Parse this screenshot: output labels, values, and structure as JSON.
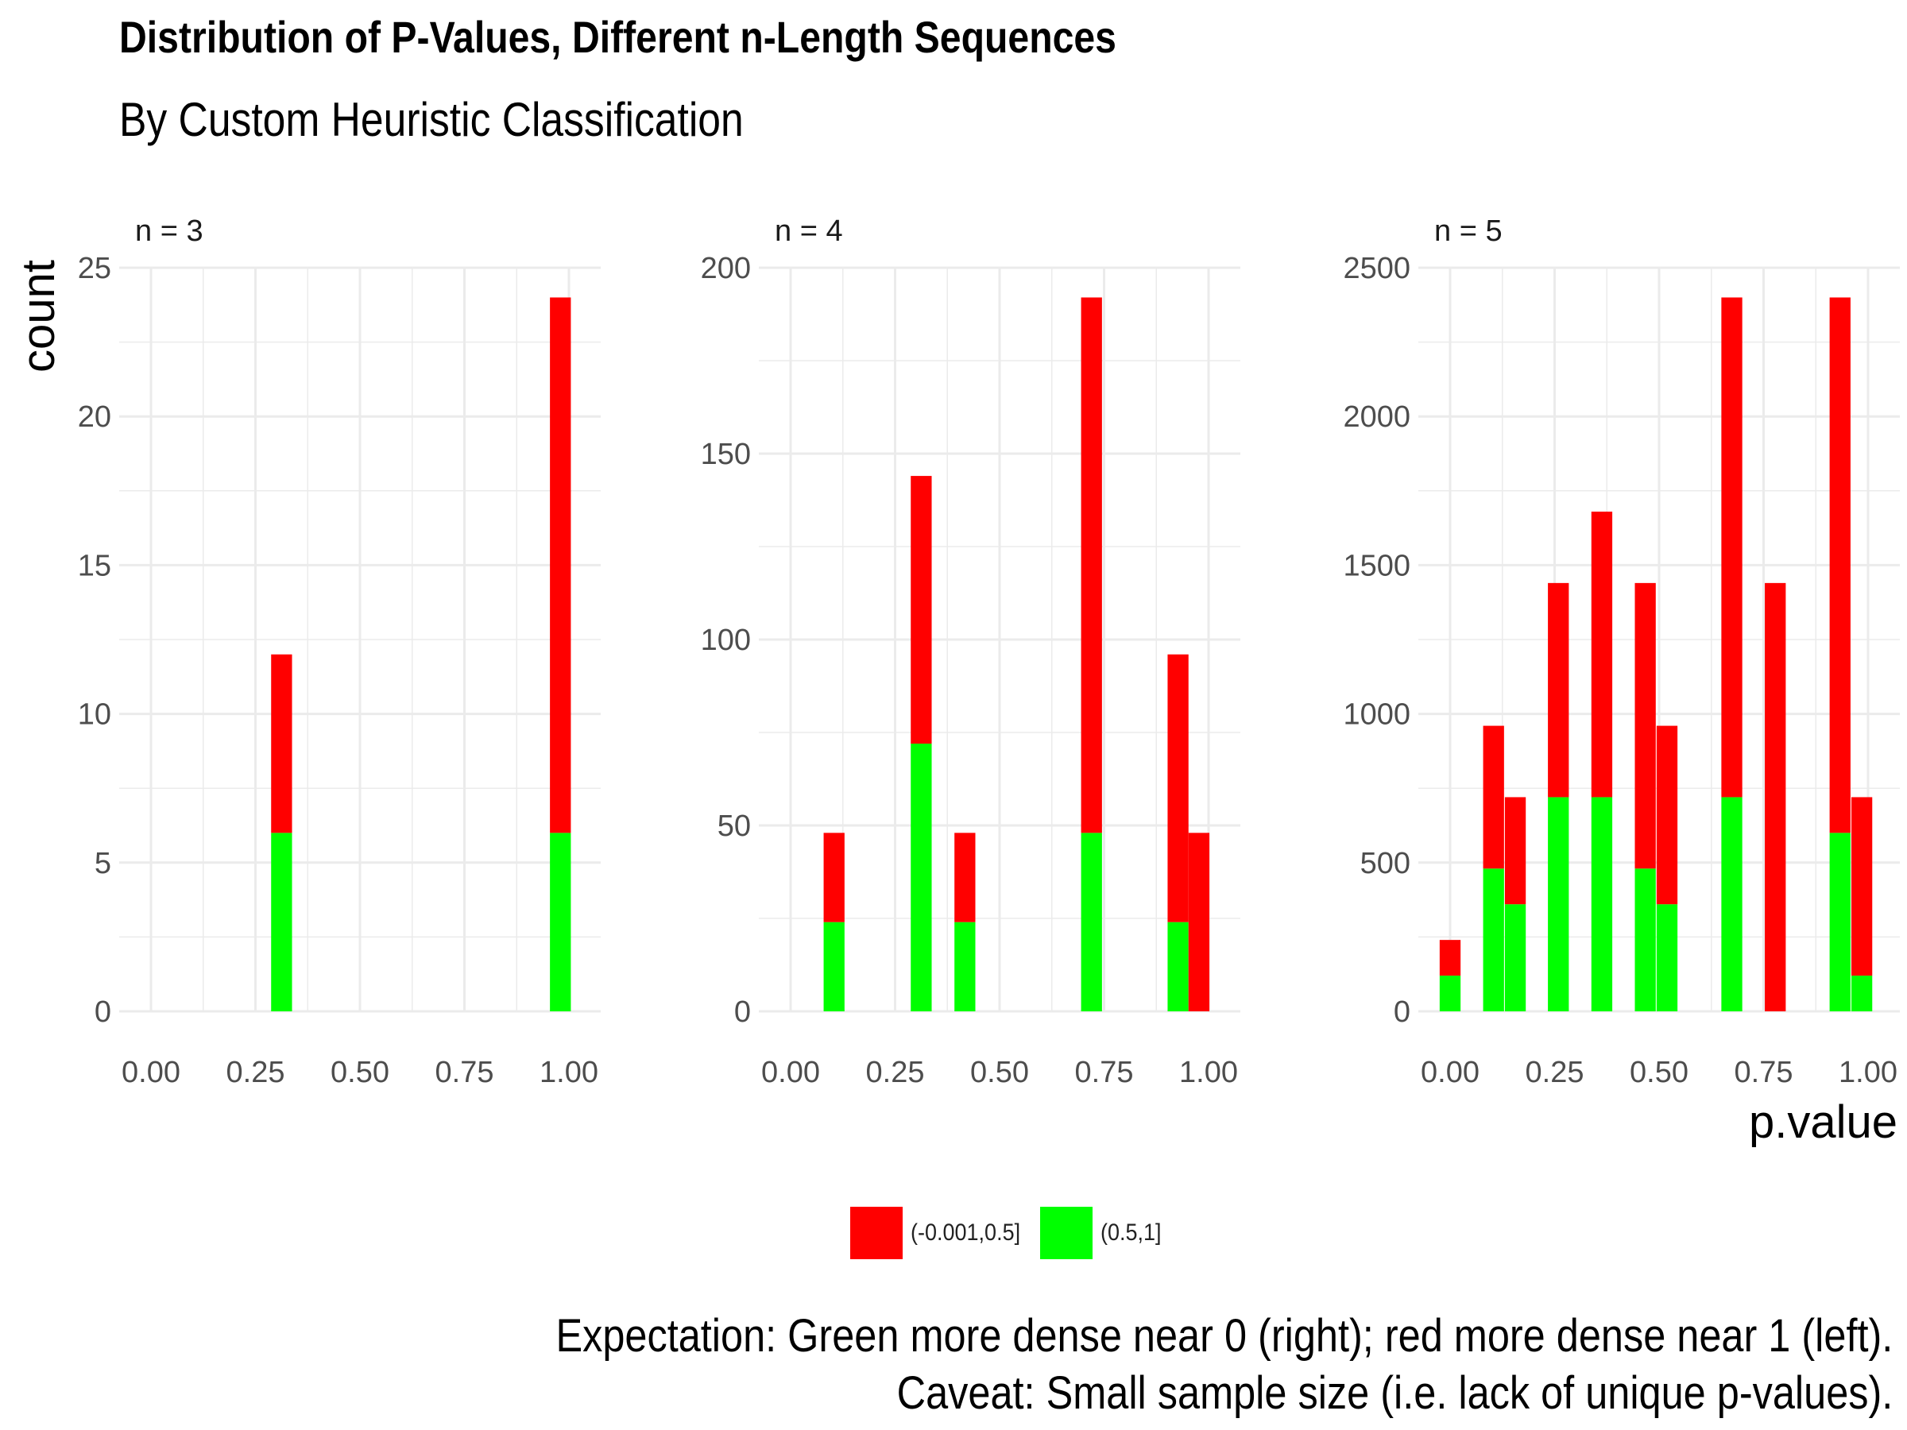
{
  "chart_data": {
    "type": "bar",
    "title": "Distribution of P-Values, Different n-Length Sequences",
    "subtitle": "By Custom Heuristic Classification",
    "xlabel": "p.value",
    "ylabel": "count",
    "caption": [
      "Expectation: Green more dense near 0 (right); red more dense near 1 (left).",
      "Caveat: Small sample size (i.e. lack of unique p-values)."
    ],
    "legend": {
      "position": "bottom",
      "entries": [
        {
          "label": "(-0.001,0.5]",
          "color": "#FF0000"
        },
        {
          "label": "(0.5,1]",
          "color": "#00FF00"
        }
      ]
    },
    "colors": {
      "red_series": "#FF0000",
      "green_series": "#00FF00",
      "grid": "#EBEBEB",
      "tick_text": "#4D4D4D"
    },
    "grid": true,
    "bin_width": 0.05,
    "xlim": [
      0,
      1
    ],
    "x_tick_labels": [
      "0.00",
      "0.25",
      "0.50",
      "0.75",
      "1.00"
    ],
    "panels": [
      {
        "label": "n = 3",
        "ylim": [
          0,
          25
        ],
        "y_ticks": [
          0,
          5,
          10,
          15,
          20,
          25
        ],
        "bars": [
          {
            "x": 0.3125,
            "red": 6,
            "green": 6
          },
          {
            "x": 0.9796,
            "red": 18,
            "green": 6
          }
        ]
      },
      {
        "label": "n = 4",
        "ylim": [
          0,
          200
        ],
        "y_ticks": [
          0,
          50,
          100,
          150,
          200
        ],
        "bars": [
          {
            "x": 0.104,
            "red": 24,
            "green": 24
          },
          {
            "x": 0.3125,
            "red": 72,
            "green": 72
          },
          {
            "x": 0.417,
            "red": 24,
            "green": 24
          },
          {
            "x": 0.72,
            "red": 144,
            "green": 48
          },
          {
            "x": 0.927,
            "red": 72,
            "green": 24
          },
          {
            "x": 0.977,
            "red": 48,
            "green": 0
          }
        ]
      },
      {
        "label": "n = 5",
        "ylim": [
          0,
          2500
        ],
        "y_ticks": [
          0,
          500,
          1000,
          1500,
          2000,
          2500
        ],
        "bars": [
          {
            "x": 0.0,
            "red": 120,
            "green": 120
          },
          {
            "x": 0.104,
            "red": 480,
            "green": 480
          },
          {
            "x": 0.156,
            "red": 360,
            "green": 360
          },
          {
            "x": 0.259,
            "red": 720,
            "green": 720
          },
          {
            "x": 0.363,
            "red": 960,
            "green": 720
          },
          {
            "x": 0.467,
            "red": 960,
            "green": 480
          },
          {
            "x": 0.519,
            "red": 600,
            "green": 360
          },
          {
            "x": 0.674,
            "red": 1680,
            "green": 720
          },
          {
            "x": 0.778,
            "red": 1440,
            "green": 0
          },
          {
            "x": 0.933,
            "red": 1800,
            "green": 600
          },
          {
            "x": 0.985,
            "red": 600,
            "green": 120
          }
        ]
      }
    ]
  }
}
